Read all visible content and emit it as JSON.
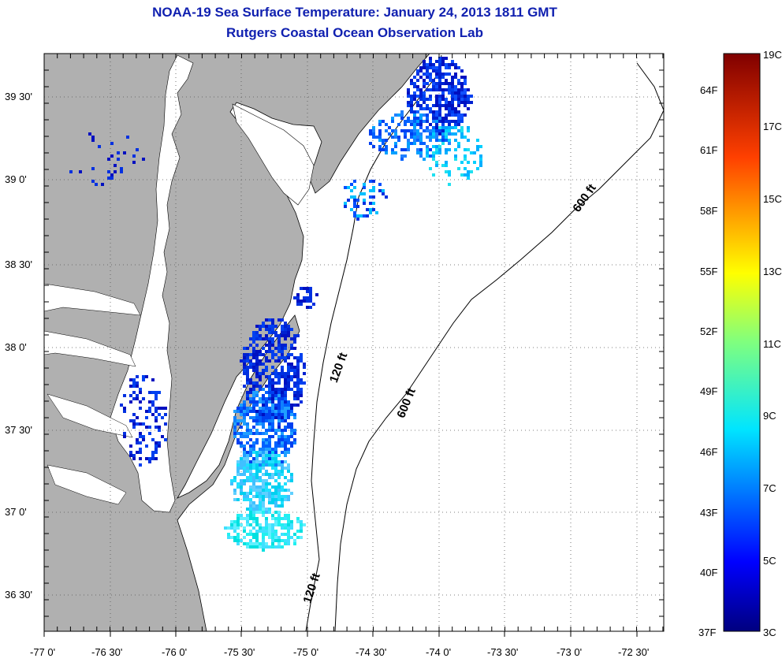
{
  "title": "NOAA-19 Sea Surface Temperature:  January 24, 2013 1811 GMT",
  "subtitle": "Rutgers Coastal Ocean Observation Lab",
  "x_ticks": [
    "-77 0'",
    "-76 30'",
    "-76 0'",
    "-75 30'",
    "-75 0'",
    "-74 30'",
    "-74 0'",
    "-73 30'",
    "-73 0'",
    "-72 30'"
  ],
  "y_ticks": [
    "39 30'",
    "39 0'",
    "38 30'",
    "38 0'",
    "37 30'",
    "37 0'",
    "36 30'"
  ],
  "contours": {
    "c120_a": "120 ft",
    "c120_b": "120 ft",
    "c600_a": "600 ft",
    "c600_b": "600 ft"
  },
  "colorbar": {
    "celsius": [
      "19C",
      "17C",
      "15C",
      "13C",
      "11C",
      "9C",
      "7C",
      "5C",
      "3C"
    ],
    "fahrenheit": [
      "64F",
      "61F",
      "58F",
      "55F",
      "52F",
      "49F",
      "46F",
      "43F",
      "40F",
      "37F"
    ]
  },
  "colors": {
    "land": "#b0b0b0",
    "water": "#ffffff",
    "title": "#1020b0"
  }
}
